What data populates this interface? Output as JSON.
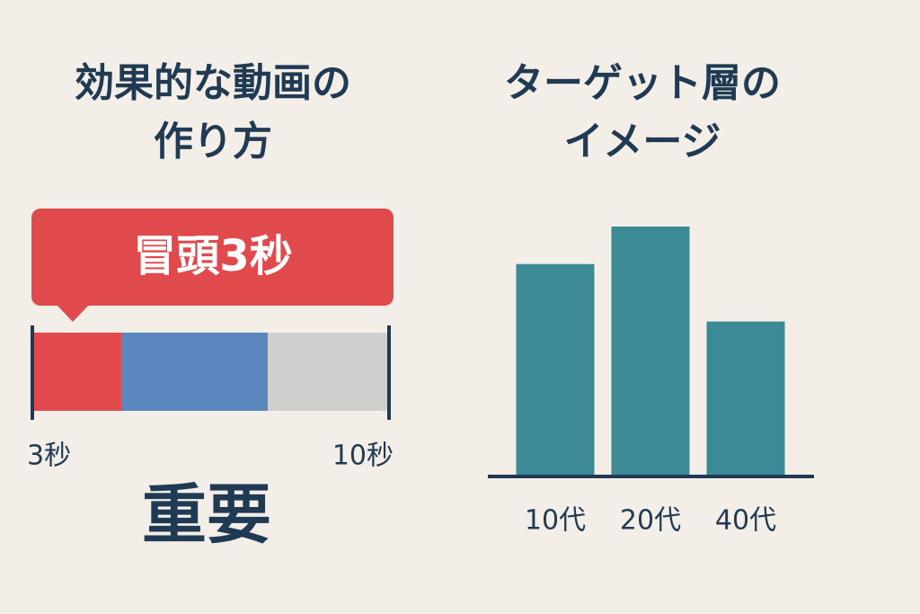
{
  "left": {
    "title": [
      "効果的な動画の",
      "作り方"
    ],
    "callout": "冒頭3秒",
    "start_label": "3秒",
    "end_label": "10秒",
    "emphasis": "重要"
  },
  "chart_data": {
    "type": "bar",
    "title": [
      "ターゲット層の",
      "イメージ"
    ],
    "categories": [
      "10代",
      "20代",
      "40代"
    ],
    "values": [
      85,
      100,
      62
    ],
    "color": "#3b8a95"
  }
}
